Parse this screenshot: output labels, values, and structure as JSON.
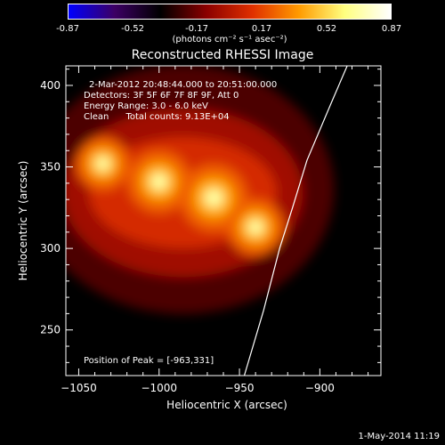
{
  "colorbar": {
    "ticks": [
      "-0.87",
      "-0.52",
      "-0.17",
      "0.17",
      "0.52",
      "0.87"
    ],
    "unit": "(photons cm⁻² s⁻¹ asec⁻²)",
    "colors": [
      "#0000ff",
      "#3c0064",
      "#000000",
      "#8b0000",
      "#e03000",
      "#ff9a00",
      "#ffff80",
      "#ffffff"
    ]
  },
  "title": "Reconstructed RHESSI Image",
  "info": {
    "line1": "2-Mar-2012 20:48:44.000 to 20:51:00.000",
    "line2": "Detectors: 3F 5F 6F 7F 8F 9F, Att 0",
    "line3": "Energy Range: 3.0 - 6.0 keV",
    "line4": "Clean      Total counts: 9.13E+04",
    "peak": "Position of Peak = [-963,331]"
  },
  "footer": "1-May-2014 11:19",
  "chart_data": {
    "type": "heatmap",
    "title": "Reconstructed RHESSI Image",
    "xlabel": "Heliocentric X (arcsec)",
    "ylabel": "Heliocentric Y (arcsec)",
    "xlim": [
      -1058,
      -862
    ],
    "ylim": [
      222,
      412
    ],
    "xticks": [
      -1050,
      -1000,
      -950,
      -900
    ],
    "yticks": [
      250,
      300,
      350,
      400
    ],
    "xtick_labels": [
      "−1050",
      "−1000",
      "−950",
      "−900"
    ],
    "ytick_labels": [
      "250",
      "300",
      "350",
      "400"
    ],
    "colorbar_range": [
      -0.87,
      0.87
    ],
    "sources": [
      {
        "x": -1035,
        "y": 352,
        "intensity": 0.65
      },
      {
        "x": -1000,
        "y": 341,
        "intensity": 0.8
      },
      {
        "x": -966,
        "y": 331,
        "intensity": 0.87
      },
      {
        "x": -940,
        "y": 313,
        "intensity": 0.7
      }
    ],
    "limb": [
      [
        -947,
        222
      ],
      [
        -935,
        262
      ],
      [
        -925,
        300
      ],
      [
        -917,
        325
      ],
      [
        -908,
        354
      ],
      [
        -893,
        389
      ],
      [
        -883,
        412
      ]
    ],
    "peak_position": [
      -963,
      331
    ]
  }
}
